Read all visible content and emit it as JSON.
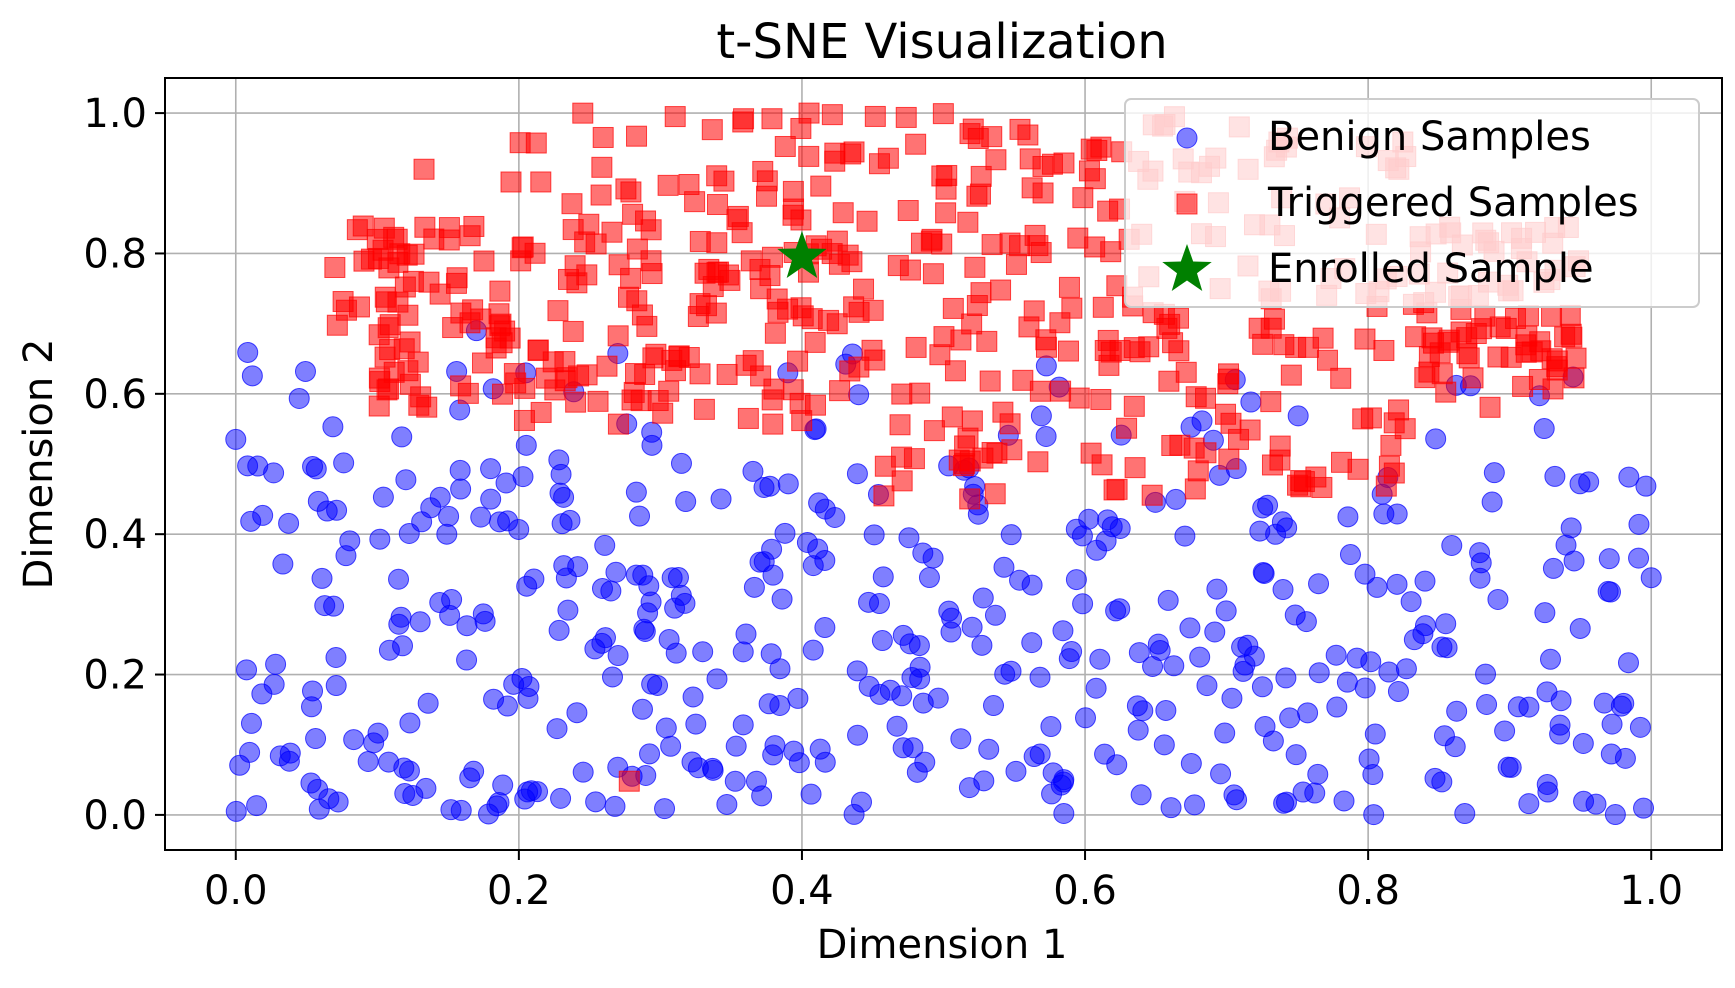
{
  "chart_data": {
    "type": "scatter",
    "title": "t-SNE Visualization",
    "xlabel": "Dimension 1",
    "ylabel": "Dimension 2",
    "xlim": [
      -0.05,
      1.05
    ],
    "ylim": [
      -0.05,
      1.05
    ],
    "grid": true,
    "legend_position": "top-right",
    "x_ticks": [
      0.0,
      0.2,
      0.4,
      0.6,
      0.8,
      1.0
    ],
    "y_ticks": [
      0.0,
      0.2,
      0.4,
      0.6,
      0.8,
      1.0
    ],
    "x_tick_labels": [
      "0.0",
      "0.2",
      "0.4",
      "0.6",
      "0.8",
      "1.0"
    ],
    "y_tick_labels": [
      "0.0",
      "0.2",
      "0.4",
      "0.6",
      "0.8",
      "1.0"
    ],
    "series": [
      {
        "name": "Benign Samples",
        "marker": "circle",
        "color": "#0000ff",
        "alpha": 0.5,
        "generator": {
          "count": 480,
          "x_range": [
            0.0,
            1.0
          ],
          "y_range": [
            0.0,
            0.66
          ],
          "seed": 7
        },
        "points": [
          [
            0.0,
            0.535
          ],
          [
            1.0,
            0.338
          ],
          [
            0.585,
            0.002
          ],
          [
            0.39,
            0.63
          ],
          [
            0.522,
            0.468
          ],
          [
            0.17,
            0.69
          ],
          [
            0.41,
            0.55
          ],
          [
            0.28,
            0.055
          ]
        ]
      },
      {
        "name": "Triggered Samples",
        "marker": "square",
        "color": "#ff0000",
        "alpha": 0.55,
        "generator": {
          "count": 560,
          "x_range": [
            0.07,
            0.95
          ],
          "y_range": [
            0.45,
            1.0
          ],
          "seed": 11
        },
        "points": [
          [
            0.405,
            1.0
          ],
          [
            0.133,
            0.92
          ],
          [
            0.1,
            0.82
          ],
          [
            0.07,
            0.78
          ],
          [
            0.278,
            0.048
          ],
          [
            0.93,
            0.65
          ]
        ]
      },
      {
        "name": "Enrolled Sample",
        "marker": "star",
        "color": "#008000",
        "alpha": 1.0,
        "points": [
          [
            0.4,
            0.795
          ]
        ]
      }
    ]
  },
  "colors": {
    "benign": "#0000ff",
    "triggered": "#ff0000",
    "enrolled": "#008000",
    "grid": "#b0b0b0"
  }
}
